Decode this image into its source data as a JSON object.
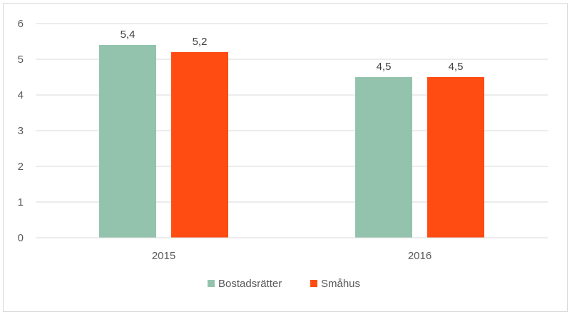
{
  "chart_data": {
    "type": "bar",
    "categories": [
      "2015",
      "2016"
    ],
    "series": [
      {
        "name": "Bostadsrätter",
        "values": [
          5.4,
          4.5
        ],
        "labels": [
          "5,4",
          "4,5"
        ],
        "color": "#93c3ad"
      },
      {
        "name": "Småhus",
        "values": [
          5.2,
          4.5
        ],
        "labels": [
          "5,2",
          "4,5"
        ],
        "color": "#ff4c12"
      }
    ],
    "yticks": [
      "0",
      "1",
      "2",
      "3",
      "4",
      "5",
      "6"
    ],
    "ylim": [
      0,
      6
    ],
    "grid": true,
    "legend": "bottom",
    "title": "",
    "xlabel": "",
    "ylabel": ""
  }
}
